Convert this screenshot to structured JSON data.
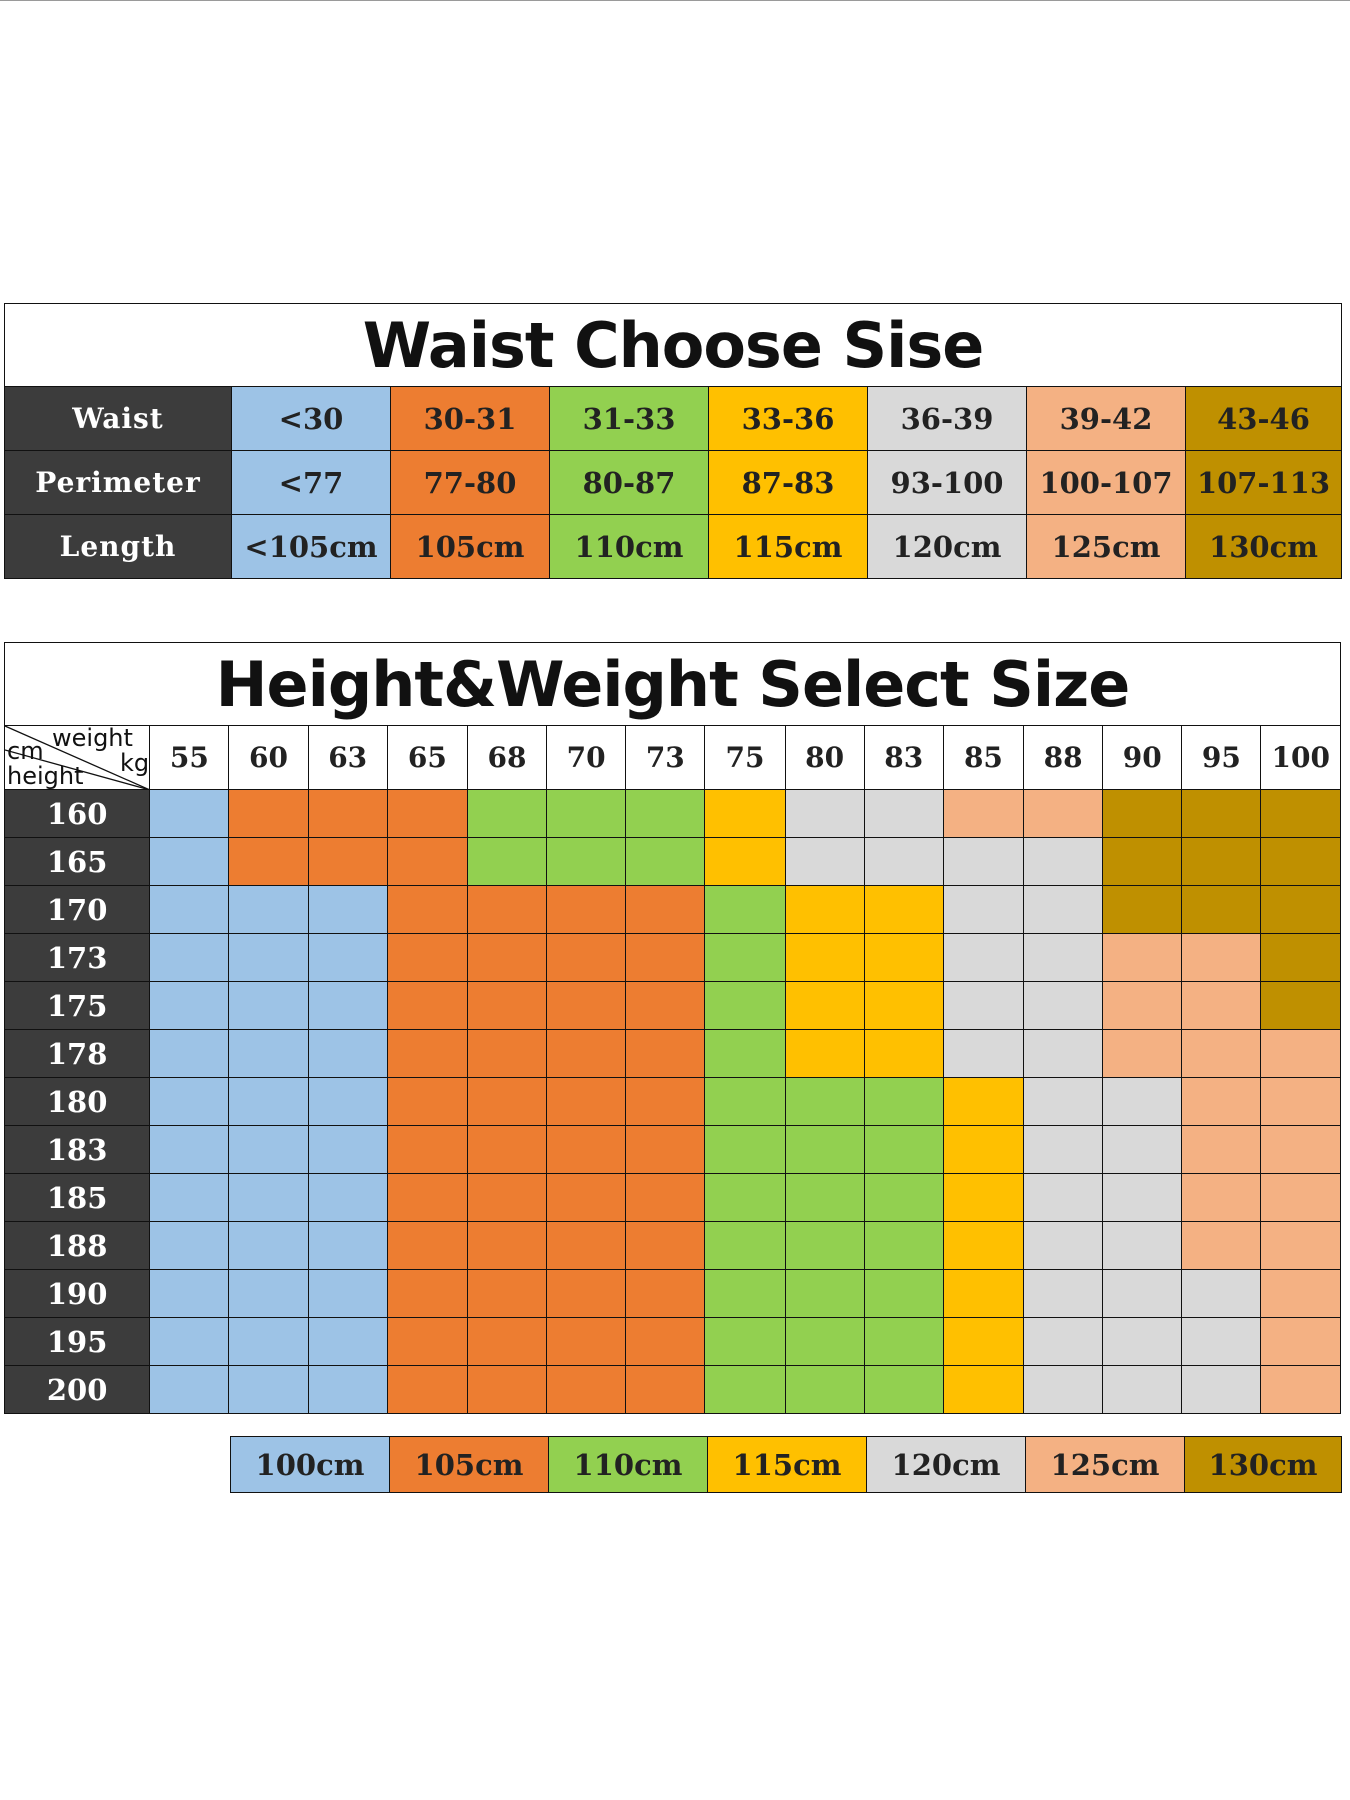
{
  "colors": {
    "blue": "#9dc3e6",
    "orange": "#ed7d31",
    "green": "#92d050",
    "yellow": "#ffc000",
    "lightgray": "#d9d9d9",
    "peach": "#f4b183",
    "gold": "#bf9000",
    "dark": "#3c3c3c"
  },
  "waist_table": {
    "title": "Waist Choose Sise",
    "color_keys": [
      "blue",
      "orange",
      "green",
      "yellow",
      "lightgray",
      "peach",
      "gold"
    ],
    "rows": [
      {
        "label": "Waist",
        "values": [
          "<30",
          "30-31",
          "31-33",
          "33-36",
          "36-39",
          "39-42",
          "43-46"
        ]
      },
      {
        "label": "Perimeter",
        "values": [
          "<77",
          "77-80",
          "80-87",
          "87-83",
          "93-100",
          "100-107",
          "107-113"
        ]
      },
      {
        "label": "Length",
        "values": [
          "<105cm",
          "105cm",
          "110cm",
          "115cm",
          "120cm",
          "125cm",
          "130cm"
        ]
      }
    ]
  },
  "size_table": {
    "title": "Height&Weight Select Size",
    "corner": {
      "cm": "cm",
      "weight": "weight",
      "kg": "kg",
      "height": "height"
    },
    "weights": [
      "55",
      "60",
      "63",
      "65",
      "68",
      "70",
      "73",
      "75",
      "80",
      "83",
      "85",
      "88",
      "90",
      "95",
      "100"
    ],
    "rows": [
      {
        "height": "160",
        "colors": [
          "blue",
          "orange",
          "orange",
          "orange",
          "green",
          "green",
          "green",
          "yellow",
          "lightgray",
          "lightgray",
          "peach",
          "peach",
          "gold",
          "gold",
          "gold"
        ]
      },
      {
        "height": "165",
        "colors": [
          "blue",
          "orange",
          "orange",
          "orange",
          "green",
          "green",
          "green",
          "yellow",
          "lightgray",
          "lightgray",
          "lightgray",
          "lightgray",
          "gold",
          "gold",
          "gold"
        ]
      },
      {
        "height": "170",
        "colors": [
          "blue",
          "blue",
          "blue",
          "orange",
          "orange",
          "orange",
          "orange",
          "green",
          "yellow",
          "yellow",
          "lightgray",
          "lightgray",
          "gold",
          "gold",
          "gold"
        ]
      },
      {
        "height": "173",
        "colors": [
          "blue",
          "blue",
          "blue",
          "orange",
          "orange",
          "orange",
          "orange",
          "green",
          "yellow",
          "yellow",
          "lightgray",
          "lightgray",
          "peach",
          "peach",
          "gold"
        ]
      },
      {
        "height": "175",
        "colors": [
          "blue",
          "blue",
          "blue",
          "orange",
          "orange",
          "orange",
          "orange",
          "green",
          "yellow",
          "yellow",
          "lightgray",
          "lightgray",
          "peach",
          "peach",
          "gold"
        ]
      },
      {
        "height": "178",
        "colors": [
          "blue",
          "blue",
          "blue",
          "orange",
          "orange",
          "orange",
          "orange",
          "green",
          "yellow",
          "yellow",
          "lightgray",
          "lightgray",
          "peach",
          "peach",
          "peach"
        ]
      },
      {
        "height": "180",
        "colors": [
          "blue",
          "blue",
          "blue",
          "orange",
          "orange",
          "orange",
          "orange",
          "green",
          "green",
          "green",
          "yellow",
          "lightgray",
          "lightgray",
          "peach",
          "peach"
        ]
      },
      {
        "height": "183",
        "colors": [
          "blue",
          "blue",
          "blue",
          "orange",
          "orange",
          "orange",
          "orange",
          "green",
          "green",
          "green",
          "yellow",
          "lightgray",
          "lightgray",
          "peach",
          "peach"
        ]
      },
      {
        "height": "185",
        "colors": [
          "blue",
          "blue",
          "blue",
          "orange",
          "orange",
          "orange",
          "orange",
          "green",
          "green",
          "green",
          "yellow",
          "lightgray",
          "lightgray",
          "peach",
          "peach"
        ]
      },
      {
        "height": "188",
        "colors": [
          "blue",
          "blue",
          "blue",
          "orange",
          "orange",
          "orange",
          "orange",
          "green",
          "green",
          "green",
          "yellow",
          "lightgray",
          "lightgray",
          "peach",
          "peach"
        ]
      },
      {
        "height": "190",
        "colors": [
          "blue",
          "blue",
          "blue",
          "orange",
          "orange",
          "orange",
          "orange",
          "green",
          "green",
          "green",
          "yellow",
          "lightgray",
          "lightgray",
          "lightgray",
          "peach"
        ]
      },
      {
        "height": "195",
        "colors": [
          "blue",
          "blue",
          "blue",
          "orange",
          "orange",
          "orange",
          "orange",
          "green",
          "green",
          "green",
          "yellow",
          "lightgray",
          "lightgray",
          "lightgray",
          "peach"
        ]
      },
      {
        "height": "200",
        "colors": [
          "blue",
          "blue",
          "blue",
          "orange",
          "orange",
          "orange",
          "orange",
          "green",
          "green",
          "green",
          "yellow",
          "lightgray",
          "lightgray",
          "lightgray",
          "peach"
        ]
      }
    ]
  },
  "legend": {
    "color_keys": [
      "blue",
      "orange",
      "green",
      "yellow",
      "lightgray",
      "peach",
      "gold"
    ],
    "labels": [
      "100cm",
      "105cm",
      "110cm",
      "115cm",
      "120cm",
      "125cm",
      "130cm"
    ]
  }
}
